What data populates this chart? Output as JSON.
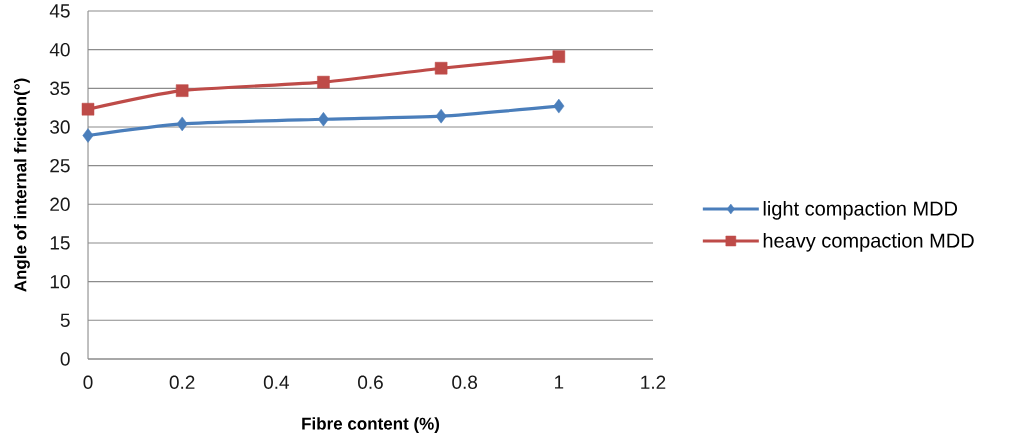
{
  "chart_data": {
    "type": "line",
    "xlabel": "Fibre content (%)",
    "ylabel": "Angle of internal friction(°)",
    "x": [
      0,
      0.2,
      0.5,
      0.75,
      1
    ],
    "series": [
      {
        "name": "light compaction MDD",
        "color": "#4a7ebb",
        "marker": "diamond",
        "values": [
          28.9,
          30.4,
          31.0,
          31.4,
          32.7
        ]
      },
      {
        "name": "heavy compaction MDD",
        "color": "#be4b48",
        "marker": "square",
        "values": [
          32.3,
          34.7,
          35.8,
          37.6,
          39.1
        ]
      }
    ],
    "xlim": [
      0,
      1.2
    ],
    "xticks": [
      0,
      0.2,
      0.4,
      0.6,
      0.8,
      1,
      1.2
    ],
    "ylim": [
      0,
      45
    ],
    "yticks": [
      0,
      5,
      10,
      15,
      20,
      25,
      30,
      35,
      40,
      45
    ],
    "grid": "y",
    "legend": "right",
    "line_style": "solid"
  }
}
